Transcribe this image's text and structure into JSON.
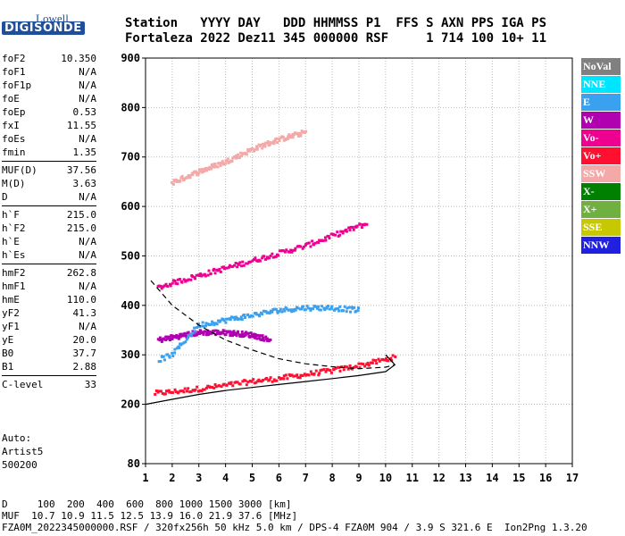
{
  "logo": {
    "line1": "Lowell",
    "line2": "DIGISONDE"
  },
  "header": {
    "line1": "Station   YYYY DAY   DDD HHMMSS P1  FFS S AXN PPS IGA PS",
    "line2": "Fortaleza 2022 Dez11 345 000000 RSF     1 714 100 10+ 11"
  },
  "params": {
    "g1": [
      {
        "name": "foF2",
        "value": "10.350"
      },
      {
        "name": "foF1",
        "value": "N/A"
      },
      {
        "name": "foF1p",
        "value": "N/A"
      },
      {
        "name": "foE",
        "value": "N/A"
      },
      {
        "name": "foEp",
        "value": "0.53"
      },
      {
        "name": "fxI",
        "value": "11.55"
      },
      {
        "name": "foEs",
        "value": "N/A"
      },
      {
        "name": "fmin",
        "value": "1.35"
      }
    ],
    "g2": [
      {
        "name": "MUF(D)",
        "value": "37.56"
      },
      {
        "name": "M(D)",
        "value": "3.63"
      },
      {
        "name": "D",
        "value": "N/A"
      }
    ],
    "g3": [
      {
        "name": "h`F",
        "value": "215.0"
      },
      {
        "name": "h`F2",
        "value": "215.0"
      },
      {
        "name": "h`E",
        "value": "N/A"
      },
      {
        "name": "h`Es",
        "value": "N/A"
      }
    ],
    "g4": [
      {
        "name": "hmF2",
        "value": "262.8"
      },
      {
        "name": "hmF1",
        "value": "N/A"
      },
      {
        "name": "hmE",
        "value": "110.0"
      },
      {
        "name": "yF2",
        "value": "41.3"
      },
      {
        "name": "yF1",
        "value": "N/A"
      },
      {
        "name": "yE",
        "value": "20.0"
      },
      {
        "name": "B0",
        "value": "37.7"
      },
      {
        "name": "B1",
        "value": "2.88"
      }
    ],
    "g5": [
      {
        "name": "C-level",
        "value": "33"
      }
    ]
  },
  "auto": {
    "line1": "Auto:",
    "line2": "Artist5",
    "line3": "500200"
  },
  "legend": [
    {
      "label": "NoVal",
      "color": "#808080"
    },
    {
      "label": "NNE",
      "color": "#00e5ff"
    },
    {
      "label": "E",
      "color": "#3aa0f0"
    },
    {
      "label": "W",
      "color": "#b000b0"
    },
    {
      "label": "Vo-",
      "color": "#ee0090"
    },
    {
      "label": "Vo+",
      "color": "#ff1030"
    },
    {
      "label": "SSW",
      "color": "#f4a8a8"
    },
    {
      "label": "X-",
      "color": "#008000"
    },
    {
      "label": "X+",
      "color": "#70b040"
    },
    {
      "label": "SSE",
      "color": "#c8c800"
    },
    {
      "label": "NNW",
      "color": "#2020e0"
    }
  ],
  "footer": {
    "line1": "D     100  200  400  600  800 1000 1500 3000 [km]",
    "line2": "MUF  10.7 10.9 11.5 12.5 13.9 16.0 21.9 37.6 [MHz]",
    "line3": "FZA0M_2022345000000.RSF / 320fx256h 50 kHz 5.0 km / DPS-4 FZA0M 904 / 3.9 S 321.6 E  Ion2Png 1.3.20"
  },
  "chart_data": {
    "type": "scatter",
    "x_ticks": [
      "1",
      "2",
      "3",
      "4",
      "5",
      "6",
      "7",
      "8",
      "9",
      "10",
      "11",
      "12",
      "13",
      "14",
      "15",
      "16",
      "17"
    ],
    "y_ticks": [
      "80",
      "200",
      "300",
      "400",
      "500",
      "600",
      "700",
      "800",
      "900"
    ],
    "xlim": [
      1,
      17
    ],
    "ylim": [
      80,
      900
    ],
    "grid": "dotted",
    "legend_position": "right",
    "series": [
      {
        "name": "Vo+",
        "color": "#ff1030",
        "trace": [
          [
            1.35,
            222
          ],
          [
            2,
            225
          ],
          [
            3,
            231
          ],
          [
            4,
            238
          ],
          [
            5,
            246
          ],
          [
            6,
            252
          ],
          [
            7,
            260
          ],
          [
            8,
            268
          ],
          [
            9,
            278
          ],
          [
            10,
            290
          ],
          [
            10.35,
            295
          ]
        ]
      },
      {
        "name": "Vo-",
        "color": "#ee0090",
        "trace": [
          [
            1.45,
            435
          ],
          [
            2,
            445
          ],
          [
            3,
            460
          ],
          [
            4,
            475
          ],
          [
            5,
            490
          ],
          [
            6,
            505
          ],
          [
            7,
            520
          ],
          [
            8,
            540
          ],
          [
            9,
            560
          ],
          [
            9.3,
            565
          ]
        ]
      },
      {
        "name": "SSW",
        "color": "#f4a8a8",
        "trace": [
          [
            2,
            648
          ],
          [
            3,
            670
          ],
          [
            4,
            690
          ],
          [
            5,
            715
          ],
          [
            6,
            735
          ],
          [
            7,
            750
          ]
        ]
      },
      {
        "name": "W",
        "color": "#b000b0",
        "trace": [
          [
            1.5,
            330
          ],
          [
            2,
            335
          ],
          [
            3,
            345
          ],
          [
            4,
            345
          ],
          [
            5,
            340
          ],
          [
            5.7,
            330
          ]
        ]
      },
      {
        "name": "E",
        "color": "#3aa0f0",
        "trace": [
          [
            1.5,
            290
          ],
          [
            2,
            300
          ],
          [
            3,
            360
          ],
          [
            4,
            370
          ],
          [
            5,
            380
          ],
          [
            6,
            390
          ],
          [
            7,
            395
          ],
          [
            8,
            395
          ],
          [
            9,
            390
          ]
        ]
      }
    ],
    "profile_curve": [
      [
        1,
        200
      ],
      [
        2,
        210
      ],
      [
        3,
        220
      ],
      [
        4,
        228
      ],
      [
        5,
        234
      ],
      [
        6,
        240
      ],
      [
        7,
        246
      ],
      [
        8,
        252
      ],
      [
        9,
        258
      ],
      [
        10,
        266
      ],
      [
        10.35,
        280
      ],
      [
        10,
        300
      ]
    ],
    "dashed_curve": [
      [
        1.2,
        450
      ],
      [
        2,
        400
      ],
      [
        3,
        360
      ],
      [
        4,
        330
      ],
      [
        5,
        310
      ],
      [
        6,
        292
      ],
      [
        7,
        282
      ],
      [
        8,
        276
      ],
      [
        9,
        272
      ],
      [
        10,
        275
      ],
      [
        10.35,
        280
      ]
    ]
  }
}
